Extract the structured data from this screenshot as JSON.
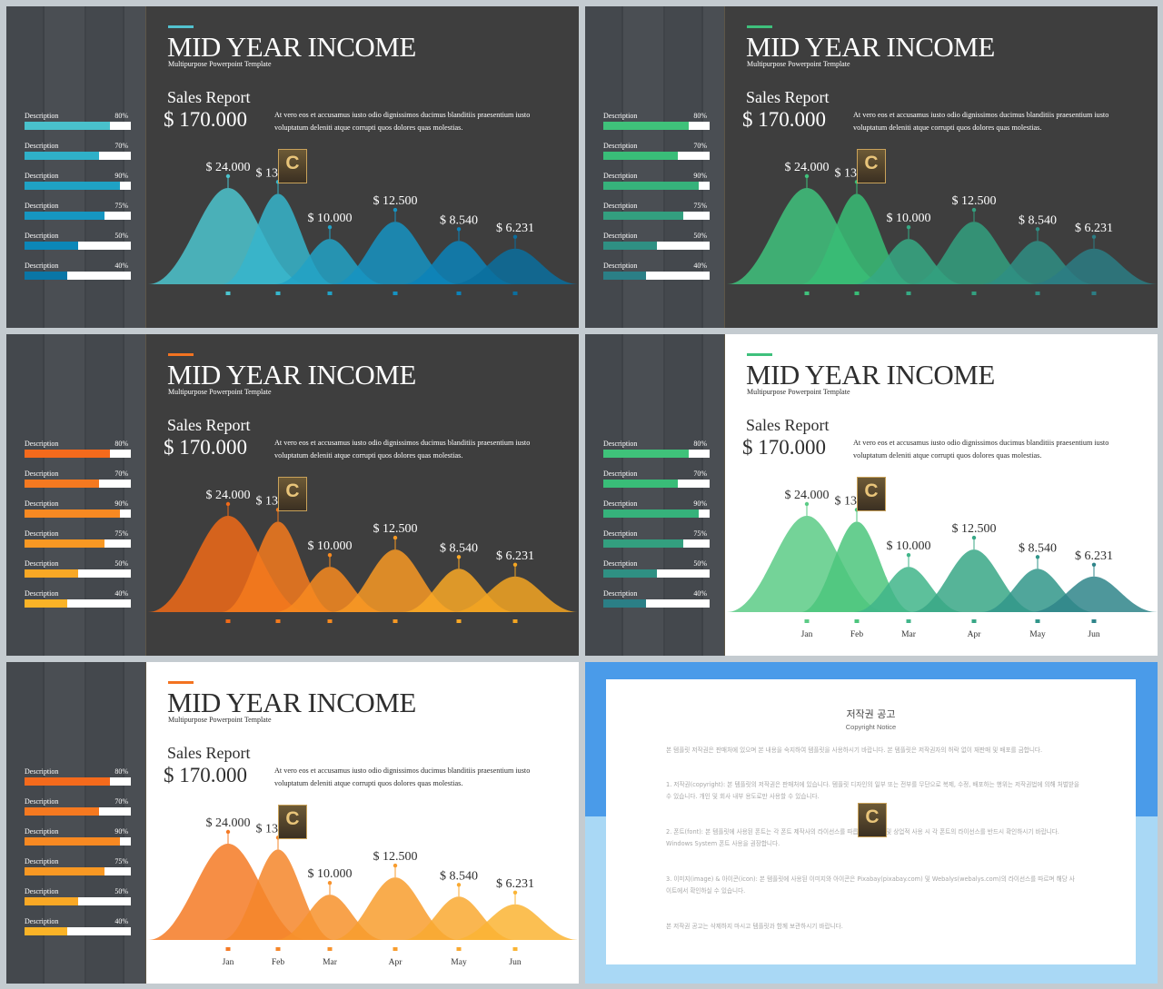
{
  "slide_text": {
    "title": "MID YEAR INCOME",
    "subtitle": "Multipurpose Powerpoint Template",
    "report_label": "Sales Report",
    "total": "$ 170.000",
    "body": "At vero eos et accusamus iusto odio dignissimos ducimus blanditiis praesentium iusto voluptatum deleniti atque corrupti quos dolores quas molestias.",
    "logo_letter": "C"
  },
  "progress_bars": [
    {
      "label": "Description",
      "percent_text": "80%",
      "value": 80
    },
    {
      "label": "Description",
      "percent_text": "70%",
      "value": 70
    },
    {
      "label": "Description",
      "percent_text": "90%",
      "value": 90
    },
    {
      "label": "Description",
      "percent_text": "75%",
      "value": 75
    },
    {
      "label": "Description",
      "percent_text": "50%",
      "value": 50
    },
    {
      "label": "Description",
      "percent_text": "40%",
      "value": 40
    }
  ],
  "chart_data": {
    "type": "area",
    "categories": [
      "Jan",
      "Feb",
      "Mar",
      "Apr",
      "May",
      "Jun"
    ],
    "values": [
      24000,
      13490,
      10000,
      12500,
      8540,
      6231
    ],
    "value_labels": [
      "$ 24.000",
      "$ 13.490",
      "$ 10.000",
      "$ 12.500",
      "$ 8.540",
      "$ 6.231"
    ],
    "peak_heights": [
      1.0,
      0.94,
      0.47,
      0.65,
      0.45,
      0.37
    ],
    "title": "",
    "xlabel": "",
    "ylabel": "",
    "grid": false,
    "legend": "none"
  },
  "themes": [
    {
      "variant": "dark",
      "accent": "#52c2cf",
      "bar_colors": [
        "#49c1cc",
        "#2fb0c8",
        "#1fa2c4",
        "#1696c1",
        "#0c87b8",
        "#0a76a6"
      ],
      "peak_colors": [
        "#4cc4ce",
        "#36b5cb",
        "#22a2c6",
        "#1693c2",
        "#0c82b8",
        "#0b6e9e"
      ],
      "show_months": false
    },
    {
      "variant": "dark",
      "accent": "#3ec07c",
      "bar_colors": [
        "#3fc27a",
        "#39bd78",
        "#36b27b",
        "#339f7f",
        "#2f9083",
        "#2b7f86"
      ],
      "peak_colors": [
        "#40c27c",
        "#38bd76",
        "#36a984",
        "#33a07f",
        "#2f8e84",
        "#2c7d84"
      ],
      "show_months": false
    },
    {
      "variant": "dark",
      "accent": "#f37321",
      "bar_colors": [
        "#f46a1c",
        "#f57920",
        "#f78922",
        "#f89823",
        "#f9a825",
        "#fab327"
      ],
      "peak_colors": [
        "#f06a18",
        "#f47a1d",
        "#f78a20",
        "#f89924",
        "#f9a826",
        "#f3a522"
      ],
      "show_months": false
    },
    {
      "variant": "light",
      "accent": "#3ec07c",
      "bar_colors": [
        "#3fc27a",
        "#39bd78",
        "#36b27b",
        "#339f7f",
        "#2f9083",
        "#2b7f86"
      ],
      "peak_colors": [
        "#5ccb86",
        "#4cc57d",
        "#41b58a",
        "#38a786",
        "#31968a",
        "#2f858a"
      ],
      "show_months": true
    },
    {
      "variant": "dark-light",
      "accent": "#f37321",
      "bar_colors": [
        "#f46a1c",
        "#f57920",
        "#f78922",
        "#f89823",
        "#f9a825",
        "#fab327"
      ],
      "peak_colors": [
        "#f47a25",
        "#f5862a",
        "#f7922c",
        "#f89d2e",
        "#f9a931",
        "#fab434"
      ],
      "show_months": true
    }
  ],
  "notice": {
    "title": "저작권 공고",
    "subtitle": "Copyright Notice",
    "paragraphs": [
      "본 템플릿 저작권은 판매처에 있으며 본 내용을 숙지하여 템플릿을 사용하시기 바랍니다. 본 템플릿은 저작권자의 허락 없이 재판매 및 배포를 금합니다.",
      "1. 저작권(copyright): 본 템플릿의 저작권은 판매처에 있습니다. 템플릿 디자인의 일부 또는 전부를 무단으로 복제, 수정, 배포하는 행위는 저작권법에 의해 처벌받을 수 있습니다. 개인 및 회사 내부 용도로만 사용할 수 있습니다.",
      "2. 폰트(font): 본 템플릿에 사용된 폰트는 각 폰트 제작사의 라이선스를 따릅니다. 배포 및 상업적 사용 시 각 폰트의 라이선스를 반드시 확인하시기 바랍니다. Windows System 폰트 사용을 권장합니다.",
      "3. 이미지(image) & 아이콘(icon): 본 템플릿에 사용된 이미지와 아이콘은 Pixabay(pixabay.com) 및 Webalys(webalys.com)의 라이선스를 따르며 해당 사이트에서 확인하실 수 있습니다.",
      "본 저작권 공고는 삭제하지 마시고 템플릿과 함께 보관하시기 바랍니다."
    ]
  }
}
